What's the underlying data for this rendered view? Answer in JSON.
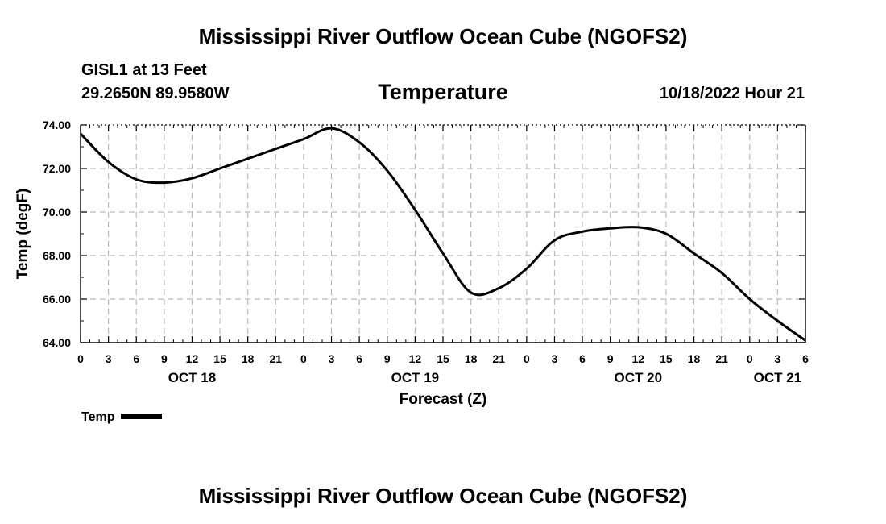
{
  "title": "Mississippi River Outflow Ocean Cube (NGOFS2)",
  "station": "GISL1 at 13 Feet",
  "coordinates": "29.2650N  89.9580W",
  "variable_title": "Temperature",
  "datetime": "10/18/2022 Hour 21",
  "bottom_title": "Mississippi River Outflow Ocean Cube (NGOFS2)",
  "legend": {
    "label": "Temp"
  },
  "colors": {
    "line": "#000000",
    "grid": "#bbbbbb",
    "background": "#ffffff"
  },
  "chart_data": {
    "type": "line",
    "title": "Temperature",
    "xlabel": "Forecast (Z)",
    "ylabel": "Temp (degF)",
    "xlim": [
      0,
      78
    ],
    "ylim": [
      64,
      74
    ],
    "x_tick_values": [
      0,
      3,
      6,
      9,
      12,
      15,
      18,
      21,
      24,
      27,
      30,
      33,
      36,
      39,
      42,
      45,
      48,
      51,
      54,
      57,
      60,
      63,
      66,
      69,
      72,
      75,
      78
    ],
    "x_tick_labels": [
      "0",
      "3",
      "6",
      "9",
      "12",
      "15",
      "18",
      "21",
      "0",
      "3",
      "6",
      "9",
      "12",
      "15",
      "18",
      "21",
      "0",
      "3",
      "6",
      "9",
      "12",
      "15",
      "18",
      "21",
      "0",
      "3",
      "6"
    ],
    "date_labels": [
      {
        "label": "OCT 18",
        "hour": 12
      },
      {
        "label": "OCT 19",
        "hour": 36
      },
      {
        "label": "OCT 20",
        "hour": 60
      },
      {
        "label": "OCT 21",
        "hour": 75
      }
    ],
    "y_tick_values": [
      64,
      66,
      68,
      70,
      72,
      74
    ],
    "y_tick_labels": [
      "64.00",
      "66.00",
      "68.00",
      "70.00",
      "72.00",
      "74.00"
    ],
    "grid": true,
    "series": [
      {
        "name": "Temp",
        "x": [
          0,
          3,
          6,
          9,
          12,
          15,
          18,
          21,
          24,
          27,
          30,
          33,
          36,
          39,
          42,
          45,
          48,
          51,
          54,
          57,
          60,
          63,
          66,
          69,
          72,
          75,
          78
        ],
        "values": [
          73.6,
          72.3,
          71.5,
          71.35,
          71.55,
          72.0,
          72.45,
          72.9,
          73.35,
          73.85,
          73.2,
          71.9,
          70.1,
          68.1,
          66.3,
          66.5,
          67.4,
          68.7,
          69.1,
          69.25,
          69.3,
          69.0,
          68.1,
          67.2,
          66.0,
          65.0,
          64.1
        ]
      }
    ]
  }
}
